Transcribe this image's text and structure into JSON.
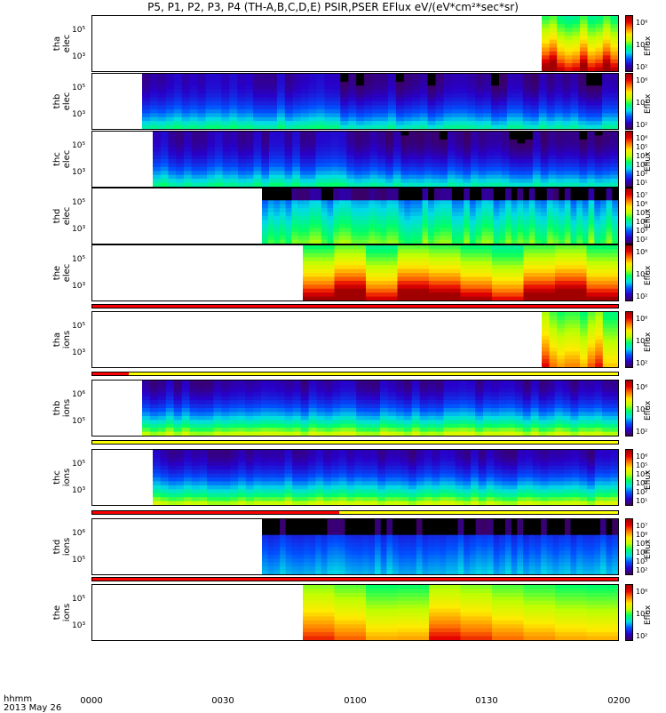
{
  "title": "P5, P1, P2, P3, P4 (TH-A,B,C,D,E) PSIR,PSER EFlux eV/(eV*cm²*sec*sr)",
  "x_axis": {
    "label_line1": "hhmm",
    "label_line2": "2013 May 26",
    "ticks": [
      "0000",
      "0030",
      "0100",
      "0130",
      "0200"
    ]
  },
  "colorbar_label": "Eflux",
  "panels": [
    {
      "id": "tha-elec",
      "label1": "tha",
      "label2": "elec",
      "yticks": [
        "10⁵",
        "10³"
      ],
      "cticks": [
        "10⁶",
        "10⁴",
        "10²"
      ],
      "start": 0.854,
      "style": "elec-mag"
    },
    {
      "id": "thb-elec",
      "label1": "thb",
      "label2": "elec",
      "yticks": [
        "10⁵",
        "10³"
      ],
      "cticks": [
        "10⁶",
        "10⁴",
        "10²"
      ],
      "start": 0.095,
      "style": "wind"
    },
    {
      "id": "thc-elec",
      "label1": "thc",
      "label2": "elec",
      "yticks": [
        "10⁵",
        "10³"
      ],
      "cticks": [
        "10⁶",
        "10⁵",
        "10⁴",
        "10³",
        "10²",
        "10¹"
      ],
      "start": 0.115,
      "style": "wind"
    },
    {
      "id": "thd-elec",
      "label1": "thd",
      "label2": "elec",
      "yticks": [
        "10⁵",
        "10³"
      ],
      "cticks": [
        "10⁷",
        "10⁶",
        "10⁵",
        "10⁴",
        "10³",
        "10²"
      ],
      "start": 0.322,
      "style": "sheath"
    },
    {
      "id": "the-elec",
      "label1": "the",
      "label2": "elec",
      "yticks": [
        "10⁵",
        "10³"
      ],
      "cticks": [
        "10⁶",
        "10⁴",
        "10²"
      ],
      "start": 0.4,
      "style": "elec-mag"
    },
    {
      "id": "tha-ions",
      "label1": "tha",
      "label2": "ions",
      "yticks": [
        "10⁵",
        "10³"
      ],
      "cticks": [
        "10⁶",
        "10⁴",
        "10²"
      ],
      "start": 0.854,
      "style": "ion-mag"
    },
    {
      "id": "thb-ions",
      "label1": "thb",
      "label2": "ions",
      "yticks": [
        "10⁶",
        "10⁵"
      ],
      "cticks": [
        "10⁶",
        "10⁴",
        "10²"
      ],
      "start": 0.095,
      "style": "wind-ion"
    },
    {
      "id": "thc-ions",
      "label1": "thc",
      "label2": "ions",
      "yticks": [
        "10⁵",
        "10³"
      ],
      "cticks": [
        "10⁶",
        "10⁵",
        "10⁴",
        "10³",
        "10²",
        "10¹"
      ],
      "start": 0.115,
      "style": "wind-ion"
    },
    {
      "id": "thd-ions",
      "label1": "thd",
      "label2": "ions",
      "yticks": [
        "10⁶",
        "10⁵"
      ],
      "cticks": [
        "10⁷",
        "10⁶",
        "10⁵",
        "10⁴",
        "10³",
        "10²"
      ],
      "start": 0.322,
      "style": "sheath-ion"
    },
    {
      "id": "the-ions",
      "label1": "the",
      "label2": "ions",
      "yticks": [
        "10⁵",
        "10³"
      ],
      "cticks": [
        "10⁶",
        "10⁴",
        "10²"
      ],
      "start": 0.4,
      "style": "ion-mag"
    }
  ],
  "flag_bars": [
    {
      "segments": [
        {
          "from": 0.0,
          "to": 1.0,
          "color": "#ff0000"
        }
      ]
    },
    {
      "segments": [
        {
          "from": 0.0,
          "to": 0.07,
          "color": "#ff0000"
        },
        {
          "from": 0.07,
          "to": 1.0,
          "color": "#ffff00"
        }
      ]
    },
    {
      "segments": [
        {
          "from": 0.0,
          "to": 1.0,
          "color": "#ffff00"
        }
      ]
    },
    {
      "segments": [
        {
          "from": 0.0,
          "to": 0.47,
          "color": "#ff0000"
        },
        {
          "from": 0.47,
          "to": 1.0,
          "color": "#ffff00"
        }
      ]
    },
    {
      "segments": [
        {
          "from": 0.0,
          "to": 1.0,
          "color": "#ff0000"
        }
      ]
    }
  ],
  "chart_data": {
    "type": "heatmap",
    "title": "P5, P1, P2, P3, P4 (TH-A,B,C,D,E) PSIR,PSER EFlux eV/(eV*cm²*sec*sr)",
    "xlabel": "hhmm",
    "x_range": [
      "0000",
      "0200"
    ],
    "colorscale": "rainbow (blue low → red high)",
    "grid": false
  }
}
